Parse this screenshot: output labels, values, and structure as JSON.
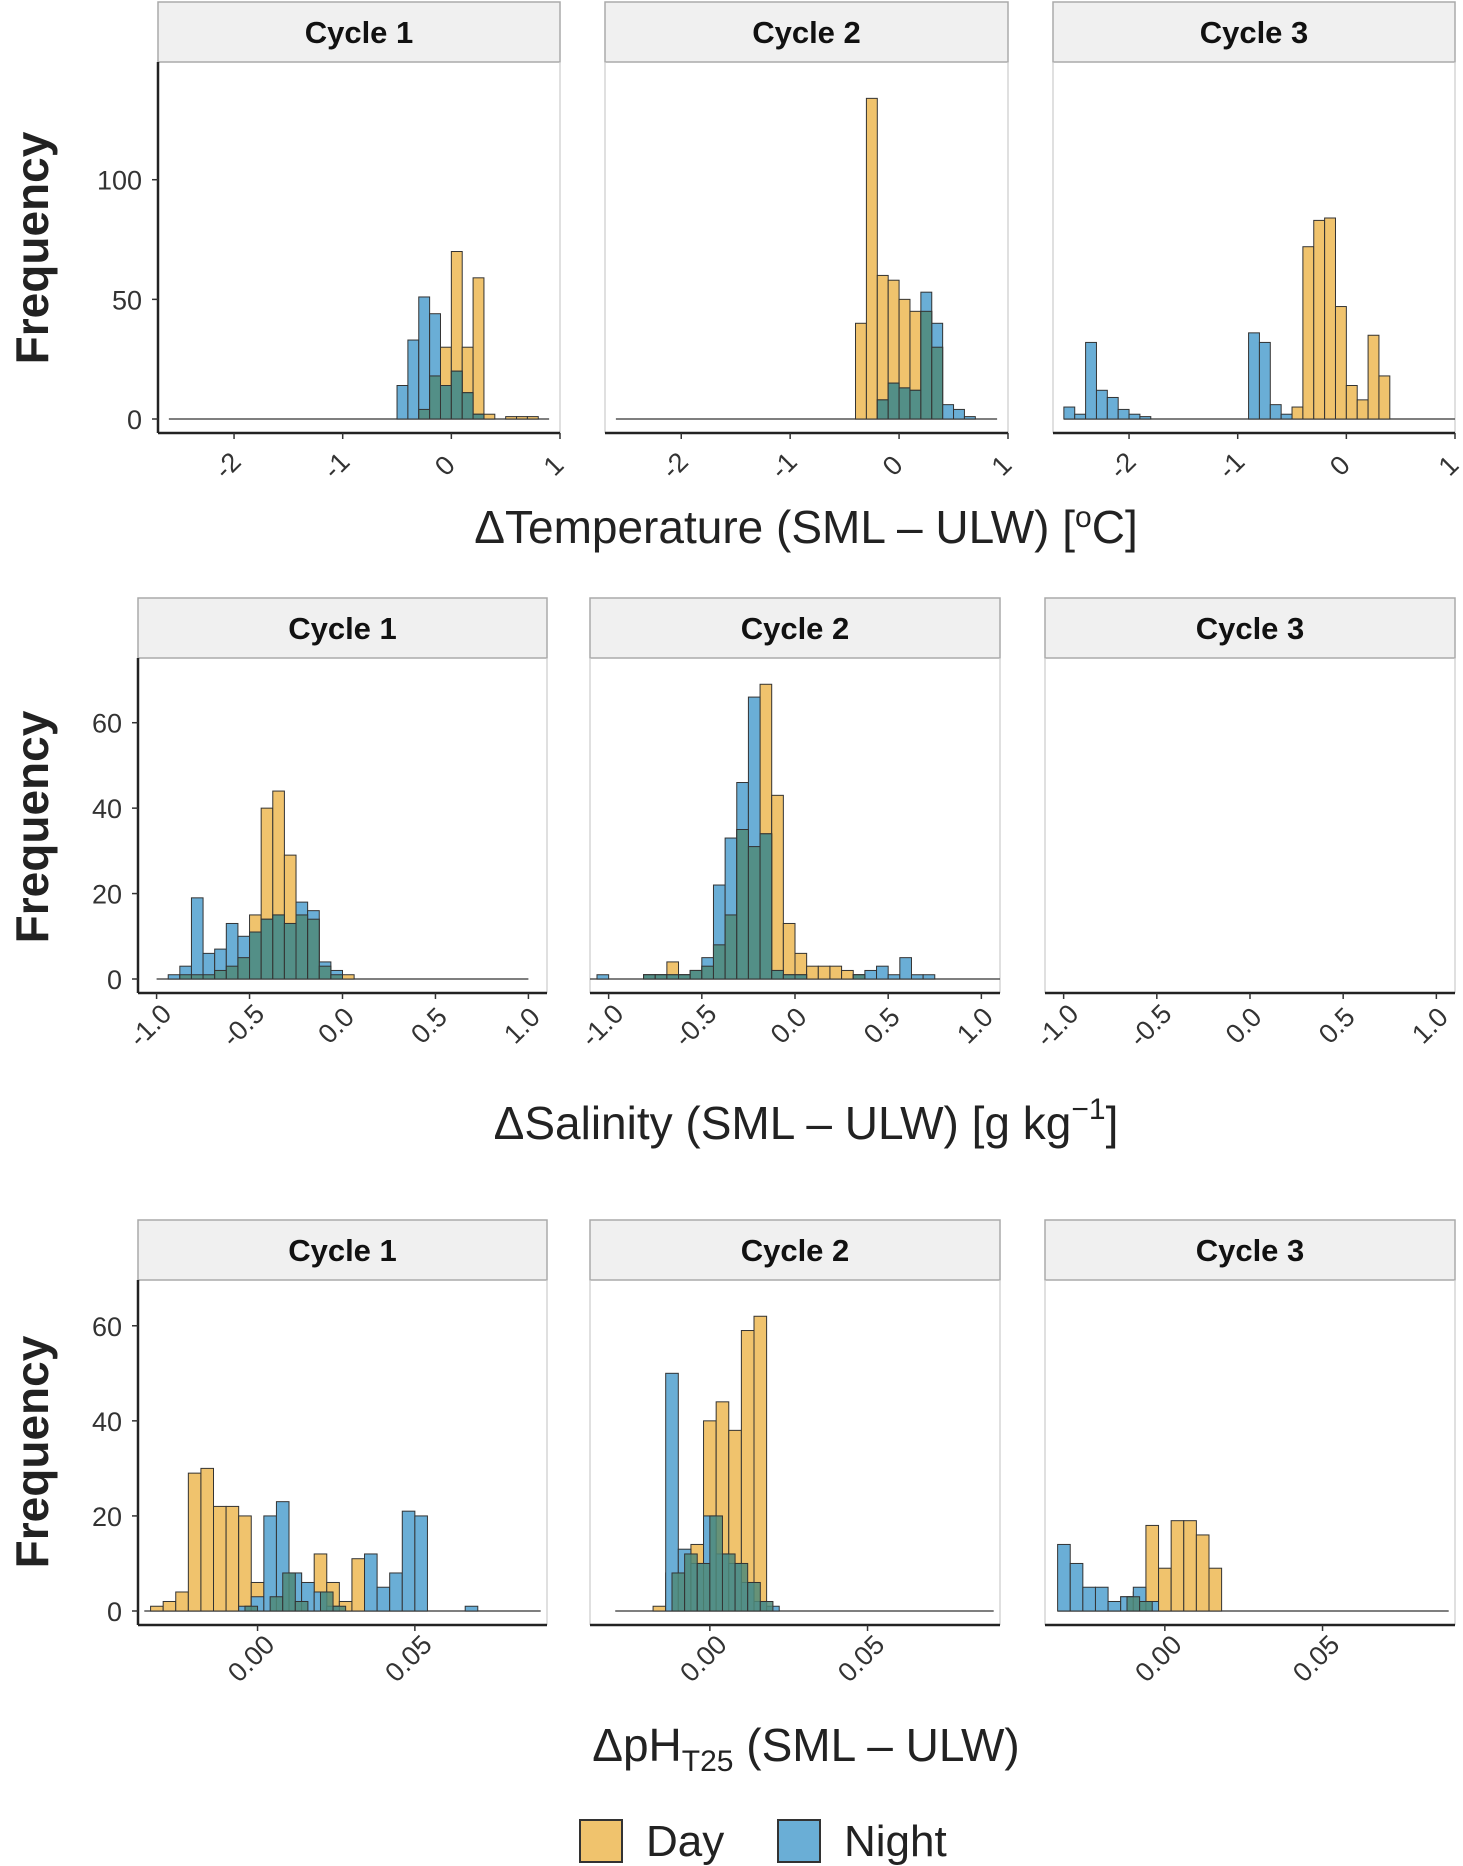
{
  "colors": {
    "day": "#f0c36d",
    "night": "#6aaed6",
    "overlap": "#4f8a79",
    "strip_fill": "#f0f0f0",
    "strip_border": "#aaaaaa",
    "bar_border": "#333333"
  },
  "legend": {
    "day_label": "Day",
    "night_label": "Night"
  },
  "chart_data": [
    {
      "type": "histogram",
      "ylabel": "Frequency",
      "xlabel_parts": {
        "main": "ΔTemperature  (SML – ULW)   [",
        "deg": "o",
        "tail": "C]"
      },
      "xlim": [
        -2.7,
        1.0
      ],
      "ylim": [
        0,
        140
      ],
      "xticks": [
        -2,
        -1,
        0,
        1
      ],
      "xticklabels": [
        "-2",
        "-1",
        "0",
        "1"
      ],
      "yticks": [
        0,
        50,
        100
      ],
      "binwidth": 0.1,
      "panels": [
        {
          "title": "Cycle 1",
          "baseline": [
            -2.6,
            0.9
          ],
          "day": {
            "start": -0.3,
            "values": [
              4,
              18,
              30,
              70,
              30,
              59,
              2,
              0,
              1,
              1,
              1
            ]
          },
          "night": {
            "start": -0.5,
            "values": [
              14,
              33,
              51,
              44,
              14,
              20,
              11,
              2
            ]
          }
        },
        {
          "title": "Cycle 2",
          "baseline": [
            -2.6,
            0.9
          ],
          "day": {
            "start": -0.4,
            "values": [
              40,
              134,
              60,
              58,
              50,
              45,
              45,
              30
            ]
          },
          "night": {
            "start": -0.2,
            "values": [
              8,
              15,
              13,
              12,
              53,
              40,
              6,
              4,
              1
            ]
          }
        },
        {
          "title": "Cycle 3",
          "baseline": [
            -2.6,
            1.0
          ],
          "day": {
            "start": -0.5,
            "values": [
              5,
              72,
              83,
              84,
              47,
              14,
              8,
              35,
              18
            ]
          },
          "night": {
            "start": -2.6,
            "values": [
              5,
              2,
              32,
              12,
              9,
              4,
              2,
              1,
              0,
              0,
              0,
              0,
              0,
              0,
              0,
              0,
              0,
              36,
              32,
              6,
              2
            ]
          }
        }
      ]
    },
    {
      "type": "histogram",
      "ylabel": "Frequency",
      "xlabel_parts": {
        "main": "ΔSalinity  (SML – ULW)   [g kg",
        "sup": "−1",
        "tail": "]"
      },
      "xlim": [
        -1.1,
        1.1
      ],
      "ylim": [
        0,
        70
      ],
      "xticks": [
        -1.0,
        -0.5,
        0.0,
        0.5,
        1.0
      ],
      "xticklabels": [
        "-1.0",
        "-0.5",
        "0.0",
        "0.5",
        "1.0"
      ],
      "yticks": [
        0,
        20,
        40,
        60
      ],
      "binwidth": 0.0625,
      "panels": [
        {
          "title": "Cycle 1",
          "baseline": [
            -1.0,
            1.0
          ],
          "day": {
            "start": -0.9375,
            "values": [
              0,
              1,
              1,
              1,
              2,
              3,
              5,
              15,
              40,
              44,
              29,
              15,
              14,
              3,
              1,
              1
            ]
          },
          "night": {
            "start": -0.9375,
            "values": [
              1,
              3,
              19,
              6,
              7,
              13,
              10,
              11,
              14,
              15,
              13,
              18,
              16,
              4,
              2,
              0
            ]
          }
        },
        {
          "title": "Cycle 2",
          "baseline": [
            -1.1,
            1.1
          ],
          "day": {
            "start": -0.8125,
            "values": [
              1,
              1,
              4,
              1,
              2,
              3,
              8,
              15,
              35,
              31,
              69,
              43,
              13,
              6,
              3,
              3,
              3,
              2,
              1
            ]
          },
          "night": {
            "start": -1.0625,
            "values": [
              1,
              0,
              0,
              0,
              1,
              1,
              1,
              1,
              2,
              5,
              22,
              33,
              46,
              66,
              34,
              2,
              1,
              1,
              0,
              0,
              0,
              0,
              1,
              2,
              3,
              1,
              5,
              1,
              1
            ]
          }
        },
        {
          "title": "Cycle 3",
          "baseline": null
        }
      ]
    },
    {
      "type": "histogram",
      "ylabel": "Frequency",
      "xlabel_parts": {
        "main": "ΔpH",
        "sub": "T25",
        "tail": " (SML – ULW)"
      },
      "xlim": [
        -0.038,
        0.092
      ],
      "ylim": [
        0,
        65
      ],
      "xticks": [
        0.0,
        0.05
      ],
      "xticklabels": [
        "0.00",
        "0.05"
      ],
      "yticks": [
        0,
        20,
        40,
        60
      ],
      "binwidth": 0.004,
      "panels": [
        {
          "title": "Cycle 1",
          "baseline": [
            -0.036,
            0.09
          ],
          "day": {
            "start": -0.034,
            "values": [
              1,
              2,
              4,
              29,
              30,
              22,
              22,
              20,
              6,
              2,
              3,
              8,
              2,
              12,
              6,
              2,
              11
            ]
          },
          "night": {
            "start": -0.006,
            "values": [
              1,
              3,
              20,
              23,
              8,
              6,
              4,
              1,
              0,
              0,
              12,
              5,
              8,
              21,
              20,
              0,
              0,
              0,
              1
            ]
          }
        },
        {
          "title": "Cycle 2",
          "baseline": [
            -0.03,
            0.09
          ],
          "day": {
            "start": -0.018,
            "values": [
              1,
              8,
              12,
              14,
              40,
              44,
              38,
              59,
              62
            ]
          },
          "night": {
            "start": -0.014,
            "values": [
              50,
              13,
              10,
              20,
              12,
              10,
              6,
              2,
              1
            ]
          }
        },
        {
          "title": "Cycle 3",
          "baseline": [
            -0.034,
            0.09
          ],
          "day": {
            "start": -0.014,
            "values": [
              3,
              4,
              18,
              9,
              19,
              19,
              16,
              9
            ]
          },
          "night": {
            "start": -0.034,
            "values": [
              14,
              10,
              5,
              5,
              2,
              3,
              5,
              2
            ]
          }
        }
      ]
    }
  ]
}
